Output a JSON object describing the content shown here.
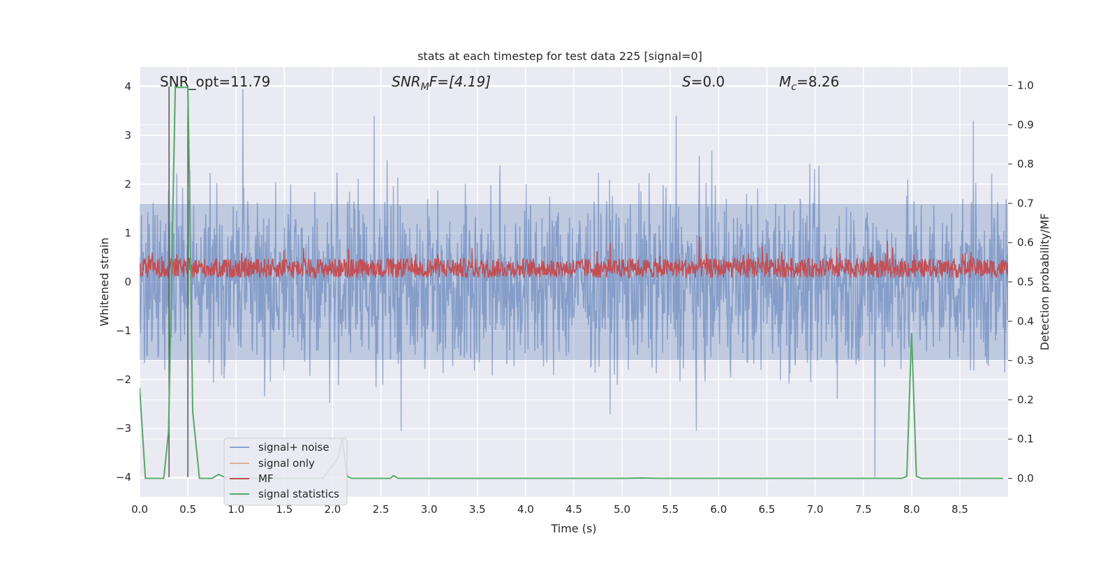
{
  "chart_data": {
    "type": "line",
    "title": "stats at each timestep for test data 225 [signal=0]",
    "xlabel": "Time (s)",
    "ylabel": "Whitened strain",
    "y2label": "Detection probability/MF",
    "xlim": [
      0.0,
      9.0
    ],
    "ylim": [
      -4.4,
      4.4
    ],
    "y2lim": [
      -0.047,
      1.047
    ],
    "x_ticks": [
      0.0,
      0.5,
      1.0,
      1.5,
      2.0,
      2.5,
      3.0,
      3.5,
      4.0,
      4.5,
      5.0,
      5.5,
      6.0,
      6.5,
      7.0,
      7.5,
      8.0,
      8.5
    ],
    "x_tick_labels": [
      "0.0",
      "0.5",
      "1.0",
      "1.5",
      "2.0",
      "2.5",
      "3.0",
      "3.5",
      "4.0",
      "4.5",
      "5.0",
      "5.5",
      "6.0",
      "6.5",
      "7.0",
      "7.5",
      "8.0",
      "8.5"
    ],
    "y_ticks": [
      -4,
      -3,
      -2,
      -1,
      0,
      1,
      2,
      3,
      4
    ],
    "y_tick_labels": [
      "−4",
      "−3",
      "−2",
      "−1",
      "0",
      "1",
      "2",
      "3",
      "4"
    ],
    "y2_ticks": [
      0.0,
      0.1,
      0.2,
      0.3,
      0.4,
      0.5,
      0.6,
      0.7,
      0.8,
      0.9,
      1.0
    ],
    "y2_tick_labels": [
      "0.0",
      "0.1",
      "0.2",
      "0.3",
      "0.4",
      "0.5",
      "0.6",
      "0.7",
      "0.8",
      "0.9",
      "1.0"
    ],
    "grid": true,
    "legend_position": "lower-left",
    "annotations": {
      "snr_opt": "SNR_opt=11.79",
      "snr_mf_label": "SNR",
      "snr_mf_sub": "M",
      "snr_mf_rest": "F=[4.19]",
      "s_label": "S",
      "s_rest": "=0.0",
      "mc_label": "M",
      "mc_sub": "c",
      "mc_rest": "=8.26"
    },
    "vertical_lines": [
      0.305,
      0.5
    ],
    "series": [
      {
        "name": "signal+ noise",
        "axis": "left",
        "color": "#4c72b0",
        "note_shape": "dense noise band, typical envelope about ±1.6 with spikes to about ±3.5",
        "peaks": [
          {
            "x": 1.07,
            "y": 3.95
          },
          {
            "x": 2.43,
            "y": 3.4
          },
          {
            "x": 5.56,
            "y": 3.4
          },
          {
            "x": 8.64,
            "y": 3.3
          },
          {
            "x": 7.62,
            "y": -4.0
          },
          {
            "x": 2.71,
            "y": -3.05
          },
          {
            "x": 5.77,
            "y": -3.05
          }
        ]
      },
      {
        "name": "signal only",
        "axis": "left",
        "color": "#dd8452",
        "values": []
      },
      {
        "name": "MF",
        "axis": "right",
        "color": "#c44e52",
        "note_shape": "fluctuates between about 0.50 and 0.62 on the right axis"
      },
      {
        "name": "signal statistics",
        "axis": "right",
        "color": "#55a868",
        "x": [
          0.0,
          0.06,
          0.25,
          0.3,
          0.35,
          0.37,
          0.38,
          0.5,
          0.52,
          0.55,
          0.62,
          0.75,
          0.82,
          0.9,
          1.1,
          1.9,
          2.05,
          2.1,
          2.15,
          2.2,
          2.6,
          2.63,
          2.68,
          3.0,
          5.0,
          5.2,
          5.4,
          7.9,
          7.95,
          8.0,
          8.05,
          8.1,
          8.95
        ],
        "y": [
          0.23,
          0.0,
          0.0,
          0.12,
          0.75,
          1.0,
          0.995,
          0.995,
          0.7,
          0.17,
          0.0,
          0.0,
          0.01,
          0.0,
          0.0,
          0.0,
          0.05,
          0.1,
          0.005,
          0.0,
          0.0,
          0.007,
          0.0,
          0.0,
          0.0,
          0.001,
          0.0,
          0.0,
          0.005,
          0.37,
          0.005,
          0.0,
          0.0
        ]
      }
    ]
  }
}
